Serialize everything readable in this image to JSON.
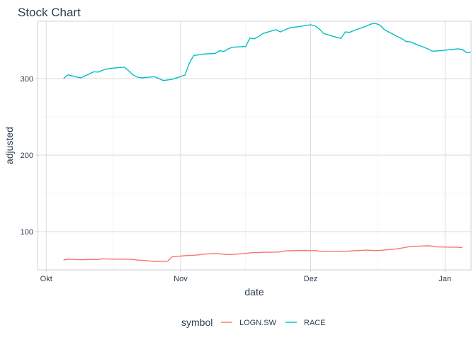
{
  "chart_data": {
    "type": "line",
    "title": "Stock Chart",
    "xlabel": "date",
    "ylabel": "adjusted",
    "x_ticks": [
      {
        "value": "2020-10-01",
        "label": "Okt"
      },
      {
        "value": "2020-11-01",
        "label": "Nov"
      },
      {
        "value": "2020-12-01",
        "label": "Dez"
      },
      {
        "value": "2021-01-01",
        "label": "Jan"
      }
    ],
    "y_ticks": [
      100,
      200,
      300
    ],
    "y_minor": [
      150,
      250
    ],
    "xlim": [
      "2020-09-29",
      "2021-01-07"
    ],
    "ylim": [
      50,
      375
    ],
    "grid": true,
    "legend": {
      "title": "symbol",
      "position": "bottom"
    },
    "series": [
      {
        "name": "LOGN.SW",
        "color": "#F8766D",
        "points": [
          [
            "2020-10-05",
            63
          ],
          [
            "2020-10-06",
            64
          ],
          [
            "2020-10-07",
            63.8
          ],
          [
            "2020-10-08",
            63.5
          ],
          [
            "2020-10-09",
            63.2
          ],
          [
            "2020-10-12",
            63.8
          ],
          [
            "2020-10-13",
            63.5
          ],
          [
            "2020-10-14",
            64.5
          ],
          [
            "2020-10-15",
            64.2
          ],
          [
            "2020-10-16",
            64.1
          ],
          [
            "2020-10-19",
            64
          ],
          [
            "2020-10-20",
            64
          ],
          [
            "2020-10-21",
            63.8
          ],
          [
            "2020-10-22",
            62.8
          ],
          [
            "2020-10-23",
            62.5
          ],
          [
            "2020-10-26",
            61
          ],
          [
            "2020-10-27",
            61.2
          ],
          [
            "2020-10-28",
            61.2
          ],
          [
            "2020-10-29",
            61.3
          ],
          [
            "2020-10-30",
            67
          ],
          [
            "2020-11-02",
            68.5
          ],
          [
            "2020-11-03",
            69
          ],
          [
            "2020-11-04",
            69.2
          ],
          [
            "2020-11-05",
            69.5
          ],
          [
            "2020-11-06",
            70.5
          ],
          [
            "2020-11-09",
            71.5
          ],
          [
            "2020-11-10",
            71
          ],
          [
            "2020-11-11",
            70.5
          ],
          [
            "2020-11-12",
            70
          ],
          [
            "2020-11-13",
            70.2
          ],
          [
            "2020-11-16",
            71.5
          ],
          [
            "2020-11-17",
            72.2
          ],
          [
            "2020-11-18",
            72.8
          ],
          [
            "2020-11-19",
            72.5
          ],
          [
            "2020-11-20",
            73
          ],
          [
            "2020-11-23",
            73.2
          ],
          [
            "2020-11-24",
            73.5
          ],
          [
            "2020-11-25",
            74.8
          ],
          [
            "2020-11-26",
            75
          ],
          [
            "2020-11-27",
            75.2
          ],
          [
            "2020-11-30",
            75.5
          ],
          [
            "2020-12-01",
            75
          ],
          [
            "2020-12-02",
            75.3
          ],
          [
            "2020-12-03",
            74.5
          ],
          [
            "2020-12-04",
            74.2
          ],
          [
            "2020-12-07",
            74.3
          ],
          [
            "2020-12-08",
            74.4
          ],
          [
            "2020-12-09",
            74.3
          ],
          [
            "2020-12-10",
            74.5
          ],
          [
            "2020-12-11",
            75
          ],
          [
            "2020-12-14",
            75.8
          ],
          [
            "2020-12-15",
            75.5
          ],
          [
            "2020-12-16",
            75.2
          ],
          [
            "2020-12-17",
            75.5
          ],
          [
            "2020-12-18",
            76
          ],
          [
            "2020-12-21",
            77.5
          ],
          [
            "2020-12-22",
            78.5
          ],
          [
            "2020-12-23",
            79.5
          ],
          [
            "2020-12-24",
            80.5
          ],
          [
            "2020-12-28",
            81.5
          ],
          [
            "2020-12-29",
            81
          ],
          [
            "2020-12-30",
            80
          ],
          [
            "2021-01-04",
            79.5
          ],
          [
            "2021-01-05",
            79
          ]
        ]
      },
      {
        "name": "RACE",
        "color": "#00BFC4",
        "points": [
          [
            "2020-10-05",
            300
          ],
          [
            "2020-10-06",
            305
          ],
          [
            "2020-10-07",
            303.5
          ],
          [
            "2020-10-08",
            302
          ],
          [
            "2020-10-09",
            301
          ],
          [
            "2020-10-12",
            309
          ],
          [
            "2020-10-13",
            308.5
          ],
          [
            "2020-10-14",
            311
          ],
          [
            "2020-10-15",
            312.5
          ],
          [
            "2020-10-16",
            313.5
          ],
          [
            "2020-10-19",
            315
          ],
          [
            "2020-10-20",
            310.5
          ],
          [
            "2020-10-21",
            305
          ],
          [
            "2020-10-22",
            302
          ],
          [
            "2020-10-23",
            301
          ],
          [
            "2020-10-26",
            302.5
          ],
          [
            "2020-10-27",
            300
          ],
          [
            "2020-10-28",
            297.5
          ],
          [
            "2020-10-29",
            298.2
          ],
          [
            "2020-10-30",
            299
          ],
          [
            "2020-11-02",
            304.5
          ],
          [
            "2020-11-03",
            320
          ],
          [
            "2020-11-04",
            330
          ],
          [
            "2020-11-05",
            331
          ],
          [
            "2020-11-06",
            332
          ],
          [
            "2020-11-09",
            333
          ],
          [
            "2020-11-10",
            336.5
          ],
          [
            "2020-11-11",
            335.5
          ],
          [
            "2020-11-12",
            339
          ],
          [
            "2020-11-13",
            341
          ],
          [
            "2020-11-16",
            342
          ],
          [
            "2020-11-17",
            353
          ],
          [
            "2020-11-18",
            352
          ],
          [
            "2020-11-19",
            355
          ],
          [
            "2020-11-20",
            359
          ],
          [
            "2020-11-23",
            364
          ],
          [
            "2020-11-24",
            361
          ],
          [
            "2020-11-25",
            363.5
          ],
          [
            "2020-11-26",
            366
          ],
          [
            "2020-11-27",
            367
          ],
          [
            "2020-11-30",
            369.5
          ],
          [
            "2020-12-01",
            370.5
          ],
          [
            "2020-12-02",
            369
          ],
          [
            "2020-12-03",
            365
          ],
          [
            "2020-12-04",
            359
          ],
          [
            "2020-12-07",
            354
          ],
          [
            "2020-12-08",
            352.5
          ],
          [
            "2020-12-09",
            361
          ],
          [
            "2020-12-10",
            360.5
          ],
          [
            "2020-12-11",
            363
          ],
          [
            "2020-12-14",
            369
          ],
          [
            "2020-12-15",
            371.5
          ],
          [
            "2020-12-16",
            372
          ],
          [
            "2020-12-17",
            370
          ],
          [
            "2020-12-18",
            364
          ],
          [
            "2020-12-21",
            355
          ],
          [
            "2020-12-22",
            352.5
          ],
          [
            "2020-12-23",
            348.5
          ],
          [
            "2020-12-24",
            348
          ],
          [
            "2020-12-28",
            339
          ],
          [
            "2020-12-29",
            336
          ],
          [
            "2020-12-30",
            336
          ],
          [
            "2021-01-04",
            339
          ],
          [
            "2021-01-05",
            338
          ],
          [
            "2021-01-06",
            334
          ],
          [
            "2021-01-07",
            334.5
          ]
        ]
      }
    ]
  }
}
